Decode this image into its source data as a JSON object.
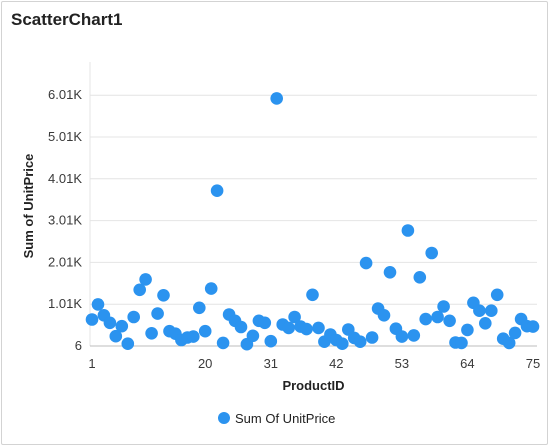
{
  "chart_data": {
    "type": "scatter",
    "title": "ScatterChart1",
    "xlabel": "ProductID",
    "ylabel": "Sum of UnitPrice",
    "x_ticks": [
      "1",
      "20",
      "31",
      "42",
      "53",
      "64",
      "75"
    ],
    "y_ticks": [
      "6",
      "1.01K",
      "2.01K",
      "3.01K",
      "4.01K",
      "5.01K",
      "6.01K"
    ],
    "ylim": [
      6,
      6800
    ],
    "grid": true,
    "legend_position": "bottom",
    "series": [
      {
        "name": "Sum Of UnitPrice",
        "color": "#2b93ef",
        "values": [
          640,
          1000,
          740,
          560,
          240,
          480,
          60,
          700,
          1350,
          1600,
          310,
          780,
          1220,
          360,
          300,
          150,
          210,
          230,
          920,
          360,
          1380,
          3720,
          80,
          760,
          610,
          460,
          50,
          250,
          610,
          560,
          120,
          5930,
          520,
          440,
          700,
          470,
          410,
          1230,
          440,
          110,
          280,
          150,
          60,
          400,
          200,
          110,
          1990,
          210,
          900,
          740,
          1770,
          420,
          230,
          2770,
          260,
          1650,
          650,
          2230,
          700,
          950,
          610,
          90,
          80,
          390,
          1040,
          850,
          550,
          850,
          1230,
          180,
          80,
          320,
          650,
          480,
          470
        ]
      }
    ]
  },
  "legend": {
    "label": "Sum Of UnitPrice"
  }
}
